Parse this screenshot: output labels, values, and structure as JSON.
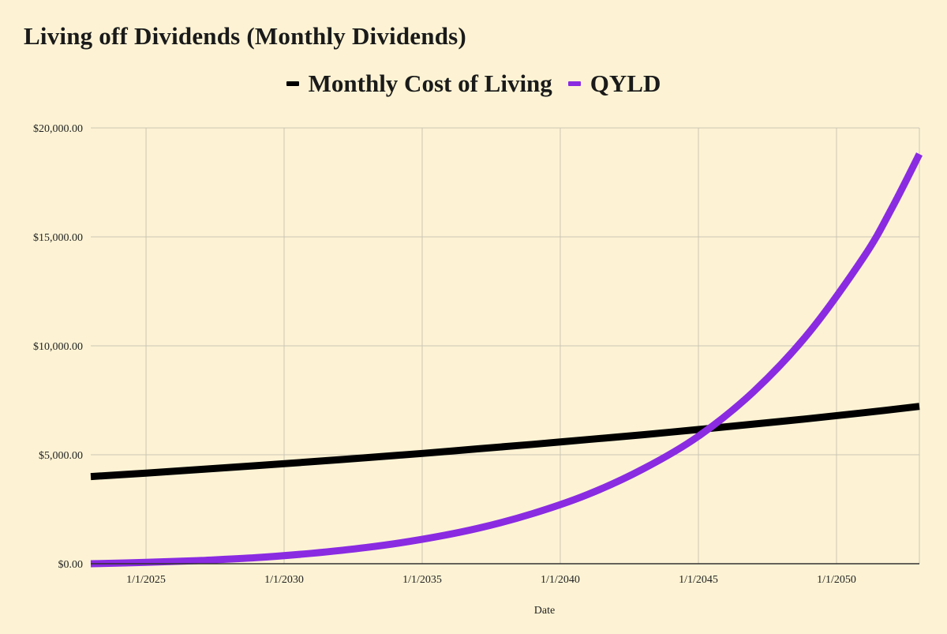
{
  "chart_data": {
    "type": "line",
    "title": "Living off Dividends (Monthly Dividends)",
    "xlabel": "Date",
    "ylabel": "",
    "x_ticks": [
      "1/1/2025",
      "1/1/2030",
      "1/1/2035",
      "1/1/2040",
      "1/1/2045",
      "1/1/2050"
    ],
    "y_ticks": [
      "$0.00",
      "$5,000.00",
      "$10,000.00",
      "$15,000.00",
      "$20,000.00"
    ],
    "ylim": [
      0,
      20000
    ],
    "xlim": [
      "2023-01-01",
      "2053-01-01"
    ],
    "grid": true,
    "legend_position": "top-center",
    "series": [
      {
        "name": "Monthly Cost of Living",
        "color": "#000000",
        "x": [
          "2023-01-01",
          "2025-01-01",
          "2027-01-01",
          "2029-01-01",
          "2031-01-01",
          "2033-01-01",
          "2035-01-01",
          "2037-01-01",
          "2039-01-01",
          "2041-01-01",
          "2043-01-01",
          "2045-01-01",
          "2047-01-01",
          "2049-01-01",
          "2051-01-01",
          "2053-01-01"
        ],
        "values": [
          4000,
          4160,
          4330,
          4500,
          4680,
          4870,
          5060,
          5270,
          5480,
          5700,
          5920,
          6160,
          6410,
          6660,
          6930,
          7220
        ]
      },
      {
        "name": "QYLD",
        "color": "#8a2be2",
        "x": [
          "2023-01-01",
          "2025-01-01",
          "2027-01-01",
          "2029-01-01",
          "2031-01-01",
          "2033-01-01",
          "2035-01-01",
          "2037-01-01",
          "2039-01-01",
          "2041-01-01",
          "2043-01-01",
          "2045-01-01",
          "2047-01-01",
          "2049-01-01",
          "2051-01-01",
          "2052-01-01",
          "2053-01-01"
        ],
        "values": [
          0,
          60,
          150,
          280,
          480,
          750,
          1120,
          1620,
          2300,
          3180,
          4350,
          5850,
          7900,
          10600,
          14100,
          16300,
          18800
        ]
      }
    ]
  }
}
